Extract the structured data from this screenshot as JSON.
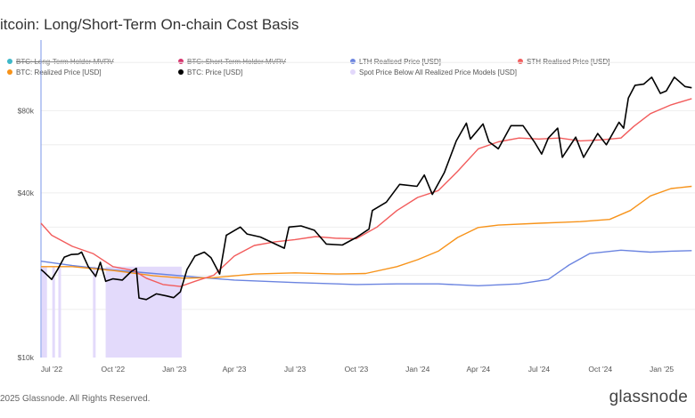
{
  "chart_data": {
    "type": "line",
    "title": "itcoin: Long/Short-Term On-chain Cost Basis",
    "yscale": "log",
    "ylim": [
      10000,
      145000
    ],
    "yticks": [
      {
        "value": 10000,
        "label": "$10k"
      },
      {
        "value": 40000,
        "label": "$40k"
      },
      {
        "value": 80000,
        "label": "$80k"
      }
    ],
    "xlim": [
      "2022-06-15",
      "2025-02-20"
    ],
    "xticks": [
      {
        "date": "2022-07-01",
        "label": "Jul '22"
      },
      {
        "date": "2022-10-01",
        "label": "Oct '22"
      },
      {
        "date": "2023-01-01",
        "label": "Jan '23"
      },
      {
        "date": "2023-04-01",
        "label": "Apr '23"
      },
      {
        "date": "2023-07-01",
        "label": "Jul '23"
      },
      {
        "date": "2023-10-01",
        "label": "Oct '23"
      },
      {
        "date": "2024-01-01",
        "label": "Jan '24"
      },
      {
        "date": "2024-04-01",
        "label": "Apr '24"
      },
      {
        "date": "2024-07-01",
        "label": "Jul '24"
      },
      {
        "date": "2024-10-01",
        "label": "Oct '24"
      },
      {
        "date": "2025-01-01",
        "label": "Jan '25"
      }
    ],
    "legend": [
      {
        "name": "BTC: Long-Term Holder MVRV",
        "color": "#3fb8c9",
        "hidden": true
      },
      {
        "name": "BTC: Short-Term Holder MVRV",
        "color": "#d6336c",
        "hidden": true
      },
      {
        "name": "LTH Realised Price [USD]",
        "color": "#6b84e0",
        "hidden": false
      },
      {
        "name": "STH Realised Price [USD]",
        "color": "#f25c5c",
        "hidden": false
      },
      {
        "name": "BTC: Realized Price [USD]",
        "color": "#f7931a",
        "hidden": false
      },
      {
        "name": "BTC: Price [USD]",
        "color": "#000000",
        "hidden": false
      },
      {
        "name": "Spot Price Below All Realized Price Models [USD]",
        "color": "#e2d8fb",
        "hidden": false
      }
    ],
    "series": [
      {
        "name": "BTC: Price [USD]",
        "color": "#000000",
        "points": [
          [
            "2022-06-15",
            21000
          ],
          [
            "2022-06-20",
            20500
          ],
          [
            "2022-07-01",
            19300
          ],
          [
            "2022-07-10",
            21000
          ],
          [
            "2022-07-20",
            23300
          ],
          [
            "2022-07-30",
            23800
          ],
          [
            "2022-08-10",
            23900
          ],
          [
            "2022-08-15",
            24300
          ],
          [
            "2022-08-25",
            21500
          ],
          [
            "2022-09-05",
            19800
          ],
          [
            "2022-09-12",
            22300
          ],
          [
            "2022-09-20",
            19000
          ],
          [
            "2022-10-01",
            19400
          ],
          [
            "2022-10-15",
            19200
          ],
          [
            "2022-10-28",
            20600
          ],
          [
            "2022-11-05",
            21200
          ],
          [
            "2022-11-09",
            16500
          ],
          [
            "2022-11-20",
            16300
          ],
          [
            "2022-12-05",
            17100
          ],
          [
            "2022-12-20",
            16800
          ],
          [
            "2022-12-31",
            16550
          ],
          [
            "2023-01-10",
            17400
          ],
          [
            "2023-01-20",
            21000
          ],
          [
            "2023-02-01",
            23500
          ],
          [
            "2023-02-15",
            24300
          ],
          [
            "2023-02-25",
            23200
          ],
          [
            "2023-03-10",
            20200
          ],
          [
            "2023-03-20",
            28000
          ],
          [
            "2023-04-10",
            30000
          ],
          [
            "2023-04-20",
            28300
          ],
          [
            "2023-05-10",
            27600
          ],
          [
            "2023-06-15",
            25100
          ],
          [
            "2023-06-22",
            30000
          ],
          [
            "2023-07-10",
            30300
          ],
          [
            "2023-07-30",
            29200
          ],
          [
            "2023-08-17",
            26000
          ],
          [
            "2023-09-10",
            25800
          ],
          [
            "2023-10-01",
            27500
          ],
          [
            "2023-10-20",
            29500
          ],
          [
            "2023-10-25",
            34500
          ],
          [
            "2023-11-15",
            37000
          ],
          [
            "2023-12-05",
            43000
          ],
          [
            "2023-12-31",
            42300
          ],
          [
            "2024-01-11",
            46500
          ],
          [
            "2024-01-23",
            39500
          ],
          [
            "2024-02-10",
            47500
          ],
          [
            "2024-02-28",
            62000
          ],
          [
            "2024-03-14",
            72000
          ],
          [
            "2024-03-20",
            63000
          ],
          [
            "2024-04-08",
            71500
          ],
          [
            "2024-04-17",
            61500
          ],
          [
            "2024-05-01",
            58000
          ],
          [
            "2024-05-20",
            70500
          ],
          [
            "2024-06-07",
            70500
          ],
          [
            "2024-06-25",
            61000
          ],
          [
            "2024-07-05",
            55500
          ],
          [
            "2024-07-15",
            63500
          ],
          [
            "2024-07-29",
            69000
          ],
          [
            "2024-08-05",
            54000
          ],
          [
            "2024-08-25",
            64000
          ],
          [
            "2024-09-06",
            54000
          ],
          [
            "2024-09-27",
            66000
          ],
          [
            "2024-10-10",
            60000
          ],
          [
            "2024-10-29",
            72500
          ],
          [
            "2024-11-05",
            69000
          ],
          [
            "2024-11-12",
            89000
          ],
          [
            "2024-11-22",
            99000
          ],
          [
            "2024-12-05",
            100000
          ],
          [
            "2024-12-17",
            106000
          ],
          [
            "2024-12-30",
            92500
          ],
          [
            "2025-01-08",
            94500
          ],
          [
            "2025-01-20",
            106000
          ],
          [
            "2025-02-05",
            98000
          ],
          [
            "2025-02-15",
            97000
          ]
        ]
      },
      {
        "name": "STH Realised Price [USD]",
        "color": "#f25c5c",
        "points": [
          [
            "2022-06-15",
            31000
          ],
          [
            "2022-07-01",
            28000
          ],
          [
            "2022-08-01",
            25500
          ],
          [
            "2022-09-01",
            24000
          ],
          [
            "2022-10-01",
            21500
          ],
          [
            "2022-11-01",
            20800
          ],
          [
            "2022-11-20",
            19500
          ],
          [
            "2022-12-15",
            18500
          ],
          [
            "2023-01-10",
            18200
          ],
          [
            "2023-02-01",
            19000
          ],
          [
            "2023-03-01",
            20000
          ],
          [
            "2023-04-01",
            23500
          ],
          [
            "2023-05-01",
            25700
          ],
          [
            "2023-06-01",
            26500
          ],
          [
            "2023-07-01",
            27000
          ],
          [
            "2023-08-01",
            27700
          ],
          [
            "2023-09-01",
            27300
          ],
          [
            "2023-10-01",
            27200
          ],
          [
            "2023-11-01",
            30000
          ],
          [
            "2023-12-01",
            34500
          ],
          [
            "2024-01-01",
            38500
          ],
          [
            "2024-02-01",
            40800
          ],
          [
            "2024-03-01",
            48000
          ],
          [
            "2024-04-01",
            58000
          ],
          [
            "2024-05-01",
            61500
          ],
          [
            "2024-06-01",
            63500
          ],
          [
            "2024-07-01",
            63000
          ],
          [
            "2024-08-01",
            63500
          ],
          [
            "2024-09-01",
            62000
          ],
          [
            "2024-10-01",
            62500
          ],
          [
            "2024-11-01",
            63500
          ],
          [
            "2024-11-20",
            70000
          ],
          [
            "2024-12-15",
            78000
          ],
          [
            "2025-01-15",
            84000
          ],
          [
            "2025-02-15",
            88500
          ]
        ]
      },
      {
        "name": "BTC: Realized Price [USD]",
        "color": "#f7931a",
        "points": [
          [
            "2022-06-15",
            21500
          ],
          [
            "2022-08-01",
            21500
          ],
          [
            "2022-10-01",
            20800
          ],
          [
            "2022-12-01",
            19900
          ],
          [
            "2023-01-15",
            19500
          ],
          [
            "2023-03-01",
            19600
          ],
          [
            "2023-05-01",
            20200
          ],
          [
            "2023-07-01",
            20400
          ],
          [
            "2023-09-01",
            20200
          ],
          [
            "2023-10-15",
            20300
          ],
          [
            "2023-12-01",
            21500
          ],
          [
            "2024-01-01",
            22800
          ],
          [
            "2024-02-01",
            24500
          ],
          [
            "2024-03-01",
            27500
          ],
          [
            "2024-04-01",
            29900
          ],
          [
            "2024-05-01",
            30500
          ],
          [
            "2024-07-01",
            31000
          ],
          [
            "2024-09-01",
            31400
          ],
          [
            "2024-10-15",
            32000
          ],
          [
            "2024-11-15",
            34500
          ],
          [
            "2024-12-15",
            39000
          ],
          [
            "2025-01-15",
            41500
          ],
          [
            "2025-02-15",
            42300
          ]
        ]
      },
      {
        "name": "LTH Realised Price [USD]",
        "color": "#6b84e0",
        "points": [
          [
            "2022-06-15",
            22500
          ],
          [
            "2022-08-01",
            21700
          ],
          [
            "2022-10-01",
            20900
          ],
          [
            "2022-12-01",
            20300
          ],
          [
            "2023-02-01",
            19700
          ],
          [
            "2023-04-01",
            19200
          ],
          [
            "2023-07-01",
            18800
          ],
          [
            "2023-10-01",
            18500
          ],
          [
            "2023-12-01",
            18600
          ],
          [
            "2024-02-01",
            18600
          ],
          [
            "2024-04-01",
            18300
          ],
          [
            "2024-06-01",
            18600
          ],
          [
            "2024-07-15",
            19300
          ],
          [
            "2024-08-15",
            21800
          ],
          [
            "2024-09-15",
            24000
          ],
          [
            "2024-11-01",
            24700
          ],
          [
            "2024-12-15",
            24300
          ],
          [
            "2025-01-15",
            24500
          ],
          [
            "2025-02-15",
            24600
          ]
        ]
      }
    ],
    "shaded_periods": [
      [
        "2022-06-16",
        "2022-06-24"
      ],
      [
        "2022-07-02",
        "2022-07-06"
      ],
      [
        "2022-07-11",
        "2022-07-15"
      ],
      [
        "2022-09-01",
        "2022-09-05"
      ],
      [
        "2022-09-20",
        "2023-01-12"
      ]
    ]
  },
  "footer": {
    "copyright": "2025 Glassnode. All Rights Reserved.",
    "brand": "glassnode"
  }
}
